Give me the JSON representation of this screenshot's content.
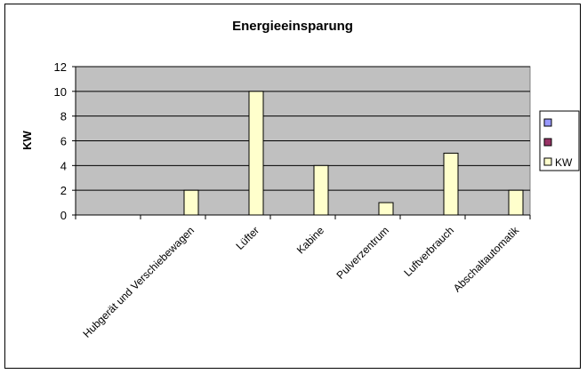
{
  "chart_data": {
    "type": "bar",
    "title": "Energieeinsparung",
    "xlabel": "",
    "ylabel": "KW",
    "ylim": [
      0,
      12
    ],
    "yticks": [
      0,
      2,
      4,
      6,
      8,
      10,
      12
    ],
    "categories": [
      "Hubgerät und Verschiebewagen",
      "Lüfter",
      "Kabine",
      "Pulverzentrum",
      "Luftverbrauch",
      "Abschaltautomatik"
    ],
    "series": [
      {
        "name": "",
        "color": "#9999ff",
        "values": [
          0,
          0,
          0,
          0,
          0,
          0
        ]
      },
      {
        "name": "",
        "color": "#993366",
        "values": [
          0,
          0,
          0,
          0,
          0,
          0
        ]
      },
      {
        "name": "KW",
        "color": "#ffffcc",
        "values": [
          2,
          10,
          4,
          1,
          5,
          2
        ]
      }
    ],
    "plot_background": "#c0c0c0",
    "grid": true,
    "legend_position": "right"
  }
}
